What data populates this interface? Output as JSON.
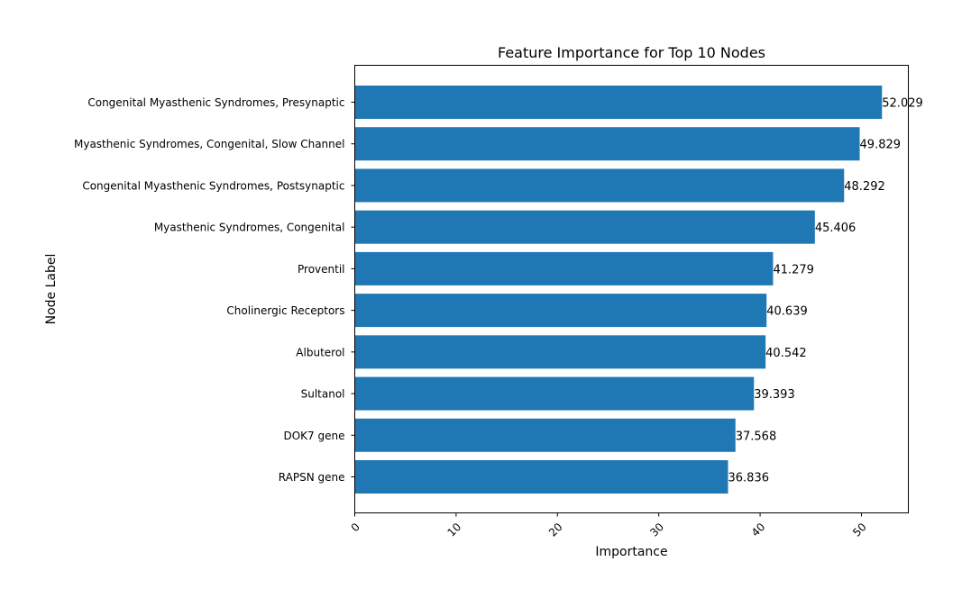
{
  "chart_data": {
    "type": "bar",
    "orientation": "horizontal",
    "title": "Feature Importance for Top 10 Nodes",
    "xlabel": "Importance",
    "ylabel": "Node Label",
    "categories": [
      "Congenital Myasthenic Syndromes, Presynaptic",
      "Myasthenic Syndromes, Congenital, Slow Channel",
      "Congenital Myasthenic Syndromes, Postsynaptic",
      "Myasthenic Syndromes, Congenital",
      "Proventil",
      "Cholinergic Receptors",
      "Albuterol",
      "Sultanol",
      "DOK7 gene",
      "RAPSN gene"
    ],
    "values": [
      52.029,
      49.829,
      48.292,
      45.406,
      41.279,
      40.639,
      40.542,
      39.393,
      37.568,
      36.836
    ],
    "value_labels": [
      "52.029",
      "49.829",
      "48.292",
      "45.406",
      "41.279",
      "40.639",
      "40.542",
      "39.393",
      "37.568",
      "36.836"
    ],
    "xlim": [
      0,
      54.63
    ],
    "xticks": [
      0,
      10,
      20,
      30,
      40,
      50
    ],
    "xtick_labels": [
      "0",
      "10",
      "20",
      "30",
      "40",
      "50"
    ],
    "grid": false,
    "colors": {
      "bar": "#1f77b4",
      "axis": "#000000",
      "text": "#000000"
    }
  }
}
